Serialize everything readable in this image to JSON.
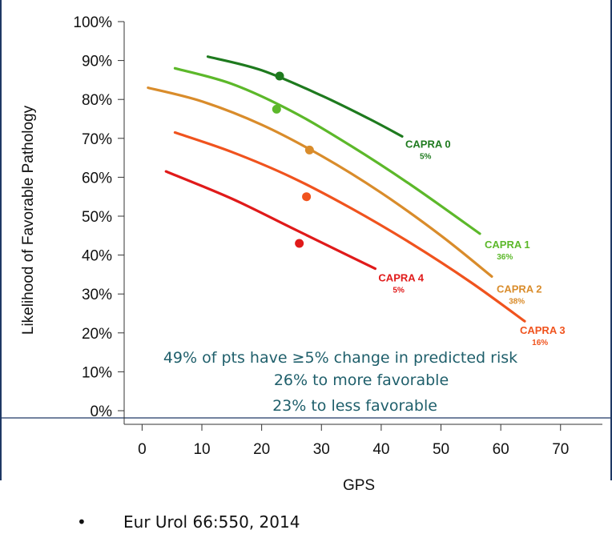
{
  "colors": {
    "capra0": "#1e7a1e",
    "capra1": "#5cb82a",
    "capra2": "#d98c2b",
    "capra3": "#f0531e",
    "capra4": "#e01a1a",
    "note": "#1f5f6b",
    "frame": "#1f3864"
  },
  "chart_data": {
    "type": "line",
    "xlabel": "GPS",
    "ylabel": "Likelihood of Favorable Pathology",
    "xlim": [
      -3,
      77
    ],
    "ylim": [
      0,
      100
    ],
    "x_ticks": [
      0,
      10,
      20,
      30,
      40,
      50,
      60,
      70
    ],
    "y_ticks": [
      0,
      10,
      20,
      30,
      40,
      50,
      60,
      70,
      80,
      90,
      100
    ],
    "y_tick_suffix": "%",
    "grid": false,
    "series": [
      {
        "name": "CAPRA 0",
        "pct": "5%",
        "color": "#1e7a1e",
        "x": [
          11,
          20,
          30,
          38,
          43.5
        ],
        "y": [
          91,
          87.5,
          81,
          75,
          70.5
        ],
        "point": {
          "x": 23,
          "y": 86
        }
      },
      {
        "name": "CAPRA 1",
        "pct": "36%",
        "color": "#5cb82a",
        "x": [
          5.5,
          15,
          25,
          35,
          45,
          56.5
        ],
        "y": [
          88,
          84,
          77,
          68,
          58,
          45.5
        ],
        "point": {
          "x": 22.5,
          "y": 77.5
        }
      },
      {
        "name": "CAPRA 2",
        "pct": "38%",
        "color": "#d98c2b",
        "x": [
          1,
          10,
          20,
          30,
          40,
          50,
          58.5
        ],
        "y": [
          83,
          79.5,
          73.5,
          65.5,
          56,
          45,
          34.5
        ],
        "point": {
          "x": 28,
          "y": 67
        }
      },
      {
        "name": "CAPRA 3",
        "pct": "16%",
        "color": "#f0531e",
        "x": [
          5.5,
          15,
          25,
          35,
          45,
          55,
          64
        ],
        "y": [
          71.5,
          66.5,
          60,
          52,
          43,
          33,
          23
        ],
        "point": {
          "x": 27.5,
          "y": 55
        }
      },
      {
        "name": "CAPRA 4",
        "pct": "5%",
        "color": "#e01a1a",
        "x": [
          4,
          15,
          25,
          35,
          39
        ],
        "y": [
          61.5,
          54.5,
          47,
          39.5,
          36.5
        ],
        "point": {
          "x": 26.3,
          "y": 43
        }
      }
    ],
    "annotations": [
      "49% of pts have ≥5% change in predicted risk",
      "26% to more favorable",
      "23% to less favorable"
    ]
  },
  "citation": "Eur Urol 66:550, 2014"
}
